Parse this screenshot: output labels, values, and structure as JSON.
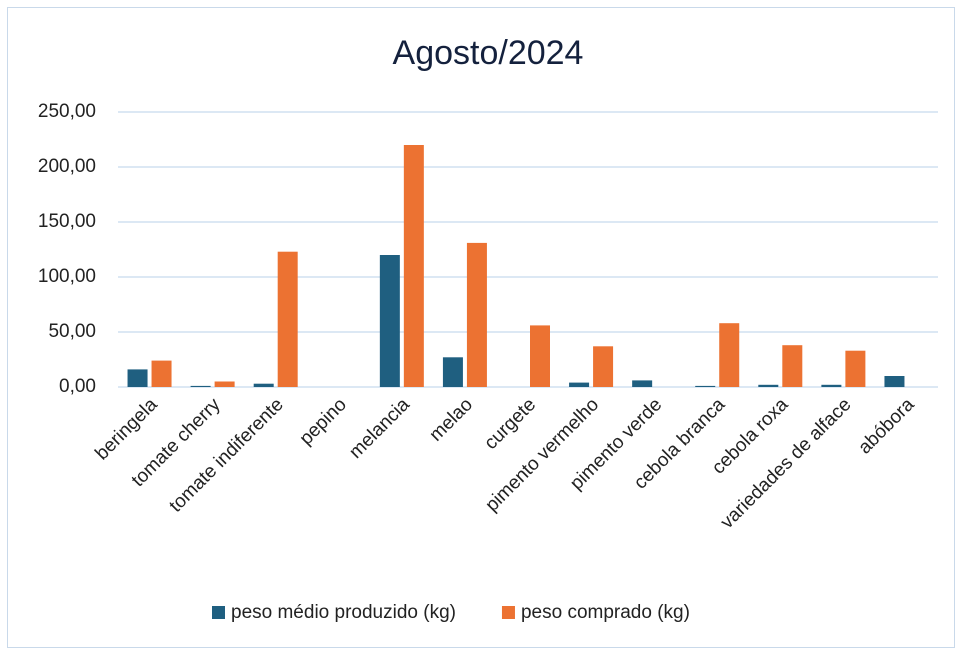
{
  "chart_data": {
    "type": "bar",
    "title": "Agosto/2024",
    "categories": [
      "beringela",
      "tomate cherry",
      "tomate indiferente",
      "pepino",
      "melancia",
      "melao",
      "curgete",
      "pimento vermelho",
      "pimento verde",
      "cebola branca",
      "cebola roxa",
      "variedades de alface",
      "abóbora"
    ],
    "series": [
      {
        "name": "peso médio produzido (kg)",
        "color": "#1f5f80",
        "values": [
          16,
          1,
          3,
          0,
          120,
          27,
          0,
          4,
          6,
          1,
          2,
          2,
          10
        ]
      },
      {
        "name": "peso comprado (kg)",
        "color": "#ec7232",
        "values": [
          24,
          5,
          123,
          0,
          220,
          131,
          56,
          37,
          0,
          58,
          38,
          33,
          0
        ]
      }
    ],
    "ylim": [
      0,
      250
    ],
    "yticks": [
      {
        "value": 0,
        "label": "0,00"
      },
      {
        "value": 50,
        "label": "50,00"
      },
      {
        "value": 100,
        "label": "100,00"
      },
      {
        "value": 150,
        "label": "150,00"
      },
      {
        "value": 200,
        "label": "200,00"
      },
      {
        "value": 250,
        "label": "250,00"
      }
    ],
    "grid": true,
    "legend": "bottom"
  }
}
